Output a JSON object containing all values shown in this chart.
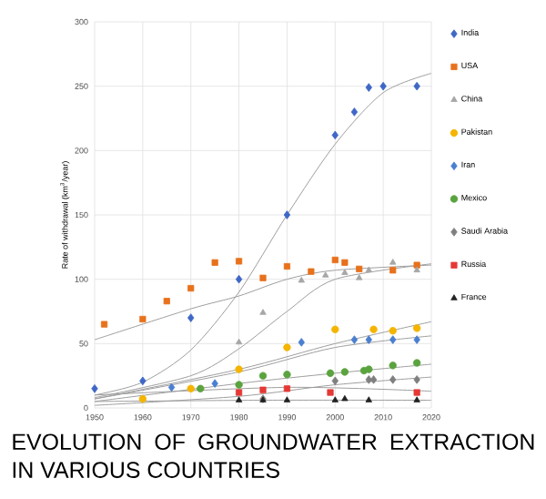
{
  "chart_data": {
    "type": "scatter",
    "title": "EVOLUTION OF GROUNDWATER EXTRACTION IN VARIOUS COUNTRIES",
    "ylabel": "Rate of withdrawal (km$^{3}$/year)",
    "xlim": [
      1950,
      2020
    ],
    "xticks": [
      1950,
      1960,
      1970,
      1980,
      1990,
      2000,
      2010,
      2020
    ],
    "ylim": [
      0,
      300
    ],
    "yticks": [
      0,
      50,
      100,
      150,
      200,
      250,
      300
    ],
    "grid": true,
    "legend": "right",
    "series": [
      {
        "name": "India",
        "color": "#3f67c6",
        "marker": "diamond",
        "x": [
          1950,
          1960,
          1970,
          1980,
          1990,
          2000,
          2004,
          2007,
          2010,
          2017
        ],
        "values": [
          15,
          21,
          70,
          100,
          150,
          212,
          230,
          249,
          250,
          250
        ]
      },
      {
        "name": "USA",
        "color": "#e8711c",
        "marker": "square",
        "x": [
          1952,
          1960,
          1965,
          1970,
          1975,
          1980,
          1985,
          1990,
          1995,
          2000,
          2002,
          2005,
          2012,
          2017
        ],
        "values": [
          65,
          69,
          83,
          93,
          113,
          114,
          101,
          110,
          106,
          115,
          113,
          108,
          107,
          111
        ]
      },
      {
        "name": "China",
        "color": "#a6a6a6",
        "marker": "triangle",
        "x": [
          1980,
          1985,
          1993,
          1998,
          2002,
          2005,
          2007,
          2012,
          2017
        ],
        "values": [
          51,
          74,
          99,
          103,
          105,
          101,
          107,
          113,
          107
        ]
      },
      {
        "name": "Pakistan",
        "color": "#f4b400",
        "marker": "circle",
        "x": [
          1960,
          1970,
          1980,
          1990,
          2000,
          2008,
          2012,
          2017
        ],
        "values": [
          7,
          15,
          30,
          47,
          61,
          61,
          60,
          62
        ]
      },
      {
        "name": "Iran",
        "color": "#4a7fd0",
        "marker": "diamond",
        "x": [
          1966,
          1975,
          1993,
          2004,
          2007,
          2012,
          2017
        ],
        "values": [
          16,
          19,
          51,
          53,
          53,
          53,
          53
        ]
      },
      {
        "name": "Mexico",
        "color": "#5aa33e",
        "marker": "circle",
        "x": [
          1972,
          1980,
          1985,
          1990,
          1999,
          2002,
          2006,
          2007,
          2012,
          2017
        ],
        "values": [
          15,
          18,
          25,
          26,
          27,
          28,
          29,
          30,
          33,
          35
        ]
      },
      {
        "name": "Saudi Arabia",
        "color": "#7f7f7f",
        "marker": "diamond",
        "x": [
          1985,
          2000,
          2007,
          2008,
          2012,
          2017
        ],
        "values": [
          7,
          21,
          22,
          22,
          22,
          22
        ]
      },
      {
        "name": "Russia",
        "color": "#e53935",
        "marker": "square",
        "x": [
          1980,
          1985,
          1990,
          1999,
          2017
        ],
        "values": [
          12,
          14,
          15,
          12,
          12
        ]
      },
      {
        "name": "France",
        "color": "#222222",
        "marker": "triangle",
        "x": [
          1980,
          1985,
          1990,
          2000,
          2002,
          2007,
          2017
        ],
        "values": [
          6,
          6,
          6,
          6,
          7,
          6,
          6
        ]
      },
      {
        "type": "line",
        "color": "#9e9e9e",
        "marker": "none",
        "x": [
          1950,
          1960,
          1970,
          1980,
          1990,
          2000,
          2010,
          2020
        ],
        "values": [
          10,
          20,
          45,
          90,
          150,
          205,
          245,
          260
        ]
      },
      {
        "type": "line",
        "color": "#9e9e9e",
        "marker": "none",
        "x": [
          1950,
          1970,
          1980,
          1990,
          2000,
          2020
        ],
        "values": [
          53,
          77,
          87,
          100,
          107,
          111
        ]
      },
      {
        "type": "line",
        "color": "#9e9e9e",
        "marker": "none",
        "x": [
          1950,
          1970,
          1980,
          1990,
          2000,
          2020
        ],
        "values": [
          8,
          25,
          46,
          75,
          100,
          112
        ]
      },
      {
        "type": "line",
        "color": "#9e9e9e",
        "marker": "none",
        "x": [
          1950,
          1980,
          2000,
          2020
        ],
        "values": [
          7,
          30,
          50,
          67
        ]
      },
      {
        "type": "line",
        "color": "#9e9e9e",
        "marker": "none",
        "x": [
          1950,
          1980,
          2000,
          2020
        ],
        "values": [
          7,
          28,
          47,
          56
        ]
      },
      {
        "type": "line",
        "color": "#9e9e9e",
        "marker": "none",
        "x": [
          1950,
          1980,
          2000,
          2020
        ],
        "values": [
          5,
          19,
          27,
          34
        ]
      },
      {
        "type": "line",
        "color": "#9e9e9e",
        "marker": "none",
        "x": [
          1950,
          1980,
          2000,
          2020
        ],
        "values": [
          2,
          9,
          18,
          24
        ]
      },
      {
        "type": "line",
        "color": "#9e9e9e",
        "marker": "none",
        "x": [
          1950,
          1990,
          2020
        ],
        "values": [
          10,
          16,
          13
        ]
      },
      {
        "type": "line",
        "color": "#9e9e9e",
        "marker": "none",
        "x": [
          1950,
          1985,
          2020
        ],
        "values": [
          5,
          6,
          6
        ]
      }
    ]
  }
}
